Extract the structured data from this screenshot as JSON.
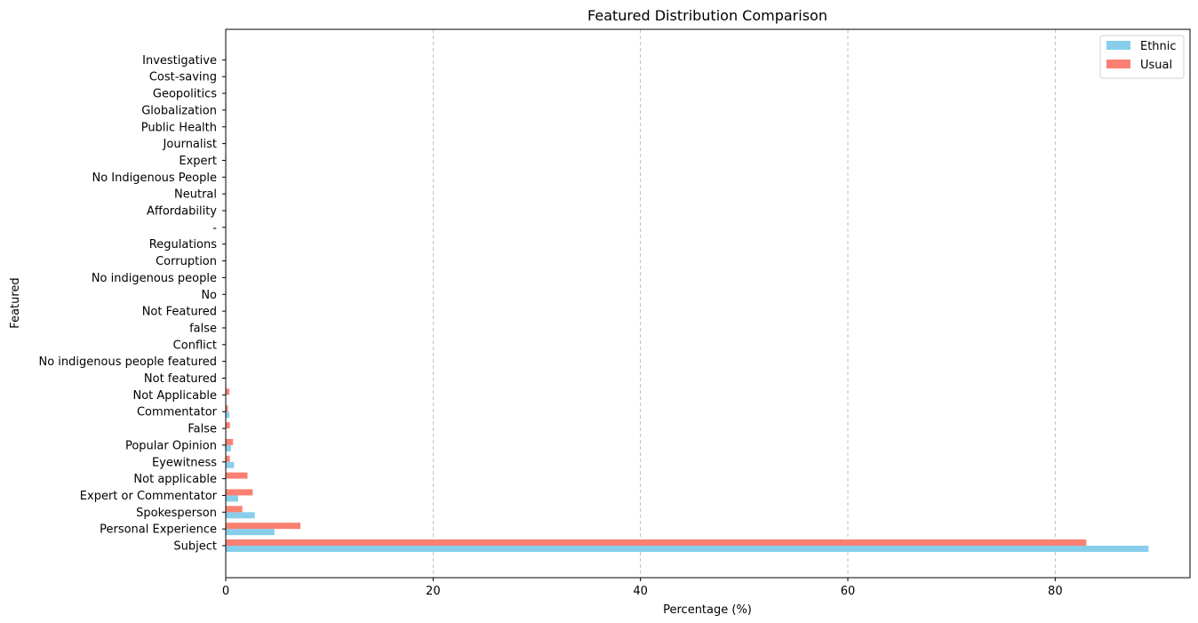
{
  "chart_data": {
    "type": "bar",
    "orientation": "horizontal",
    "title": "Featured Distribution Comparison",
    "xlabel": "Percentage (%)",
    "ylabel": "Featured",
    "xlim": [
      0,
      93
    ],
    "xticks": [
      0,
      20,
      40,
      60,
      80
    ],
    "grid": "x-dashed",
    "legend_position": "top-right",
    "categories": [
      "Subject",
      "Personal Experience",
      "Spokesperson",
      "Expert or Commentator",
      "Not applicable",
      "Eyewitness",
      "Popular Opinion",
      "False",
      "Commentator",
      "Not Applicable",
      "Not featured",
      "No indigenous people featured",
      "Conflict",
      "false",
      "Not Featured",
      "No",
      "No indigenous people",
      "Corruption",
      "Regulations",
      "-",
      "Affordability",
      "Neutral",
      "No Indigenous People",
      "Expert",
      "Journalist",
      "Public Health",
      "Globalization",
      "Geopolitics",
      "Cost-saving",
      "Investigative"
    ],
    "series": [
      {
        "name": "Ethnic",
        "color": "#87CEEB",
        "values": [
          89.0,
          4.7,
          2.8,
          1.2,
          0,
          0.8,
          0.5,
          0,
          0.35,
          0,
          0,
          0,
          0,
          0,
          0,
          0,
          0,
          0,
          0,
          0,
          0,
          0,
          0,
          0,
          0,
          0,
          0,
          0,
          0,
          0
        ]
      },
      {
        "name": "Usual",
        "color": "#FA8072",
        "values": [
          83.0,
          7.2,
          1.6,
          2.6,
          2.1,
          0.4,
          0.7,
          0.4,
          0.2,
          0.35,
          0.05,
          0.05,
          0.05,
          0.05,
          0.05,
          0.05,
          0.05,
          0.05,
          0.05,
          0.05,
          0.05,
          0.05,
          0.05,
          0.05,
          0.05,
          0.05,
          0.05,
          0.05,
          0.05,
          0.05
        ]
      }
    ]
  }
}
